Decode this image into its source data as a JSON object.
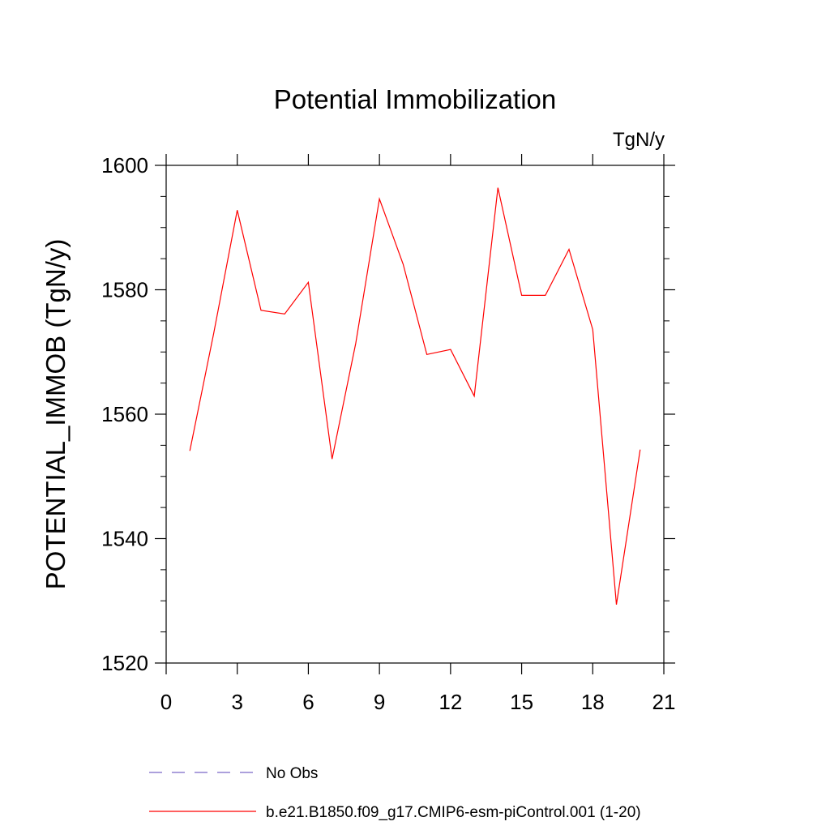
{
  "chart_data": {
    "type": "line",
    "title": "Potential Immobilization",
    "units_label": "TgN/y",
    "xlabel": "",
    "ylabel": "POTENTIAL_IMMOB  (TgN/y)",
    "xlim": [
      0,
      21
    ],
    "ylim": [
      1520,
      1600
    ],
    "xticks": [
      0,
      3,
      6,
      9,
      12,
      15,
      18,
      21
    ],
    "yticks": [
      1520,
      1540,
      1560,
      1580,
      1600
    ],
    "x_minor_step": 1,
    "y_minor_step": 5,
    "grid": false,
    "series": [
      {
        "name": "b.e21.B1850.f09_g17.CMIP6-esm-piControl.001 (1-20)",
        "color": "#ff0000",
        "style": "solid",
        "x": [
          1,
          2,
          3,
          4,
          5,
          6,
          7,
          8,
          9,
          10,
          11,
          12,
          13,
          14,
          15,
          16,
          17,
          18,
          19,
          20
        ],
        "values": [
          1554.1,
          1572.9,
          1592.8,
          1576.7,
          1576.1,
          1581.2,
          1552.8,
          1571.4,
          1594.6,
          1584.1,
          1569.6,
          1570.4,
          1562.9,
          1596.4,
          1579.1,
          1579.1,
          1586.5,
          1573.6,
          1529.4,
          1554.3
        ]
      }
    ],
    "legend": [
      {
        "label": "No Obs",
        "color": "#7b68c8",
        "style": "dashed"
      },
      {
        "label": "b.e21.B1850.f09_g17.CMIP6-esm-piControl.001 (1-20)",
        "color": "#ff0000",
        "style": "solid"
      }
    ],
    "legend_position": "bottom-left"
  }
}
